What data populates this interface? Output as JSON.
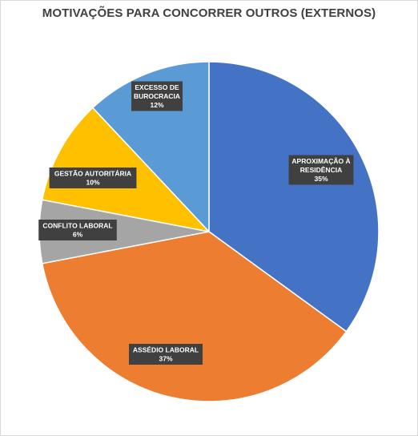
{
  "chart_data": {
    "type": "pie",
    "title": "MOTIVAÇÕES PARA CONCORRER OUTROS (EXTERNOS)",
    "slices": [
      {
        "label_lines": [
          "APROXIMAÇÃO À",
          "RESIDÊNCIA"
        ],
        "value": 35,
        "value_text": "35%",
        "color": "#4472c4"
      },
      {
        "label_lines": [
          "ASSÉDIO LABORAL"
        ],
        "value": 37,
        "value_text": "37%",
        "color": "#ed7d31"
      },
      {
        "label_lines": [
          "CONFLITO LABORAL"
        ],
        "value": 6,
        "value_text": "6%",
        "color": "#a5a5a5"
      },
      {
        "label_lines": [
          "GESTÃO AUTORITÁRIA"
        ],
        "value": 10,
        "value_text": "10%",
        "color": "#ffc000"
      },
      {
        "label_lines": [
          "EXCESSO DE",
          "BUROCRACIA"
        ],
        "value": 12,
        "value_text": "12%",
        "color": "#5b9bd5"
      }
    ],
    "start_angle_deg": 0,
    "direction": "clockwise",
    "label_box_color": "#404040",
    "slice_border_color": "#ffffff"
  }
}
